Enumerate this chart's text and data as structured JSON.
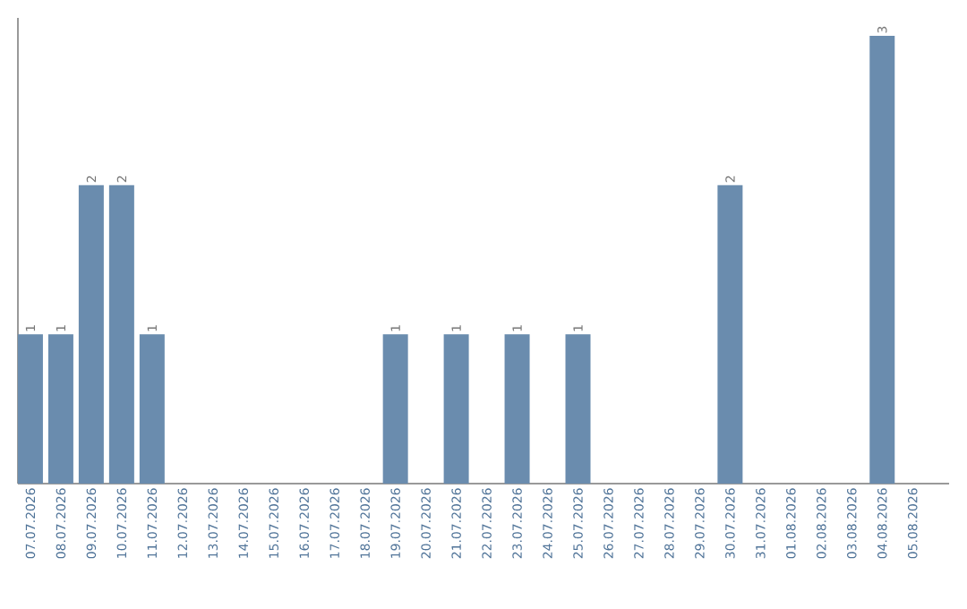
{
  "chart_data": {
    "type": "bar",
    "color": "#6a8cae",
    "categories": [
      "07.07.2026",
      "08.07.2026",
      "09.07.2026",
      "10.07.2026",
      "11.07.2026",
      "12.07.2026",
      "13.07.2026",
      "14.07.2026",
      "15.07.2026",
      "16.07.2026",
      "17.07.2026",
      "18.07.2026",
      "19.07.2026",
      "20.07.2026",
      "21.07.2026",
      "22.07.2026",
      "23.07.2026",
      "24.07.2026",
      "25.07.2026",
      "26.07.2026",
      "27.07.2026",
      "28.07.2026",
      "29.07.2026",
      "30.07.2026",
      "31.07.2026",
      "01.08.2026",
      "02.08.2026",
      "03.08.2026",
      "04.08.2026",
      "05.08.2026"
    ],
    "values": [
      1,
      1,
      2,
      2,
      1,
      0,
      0,
      0,
      0,
      0,
      0,
      0,
      1,
      0,
      1,
      0,
      1,
      0,
      1,
      0,
      0,
      0,
      0,
      2,
      0,
      0,
      0,
      0,
      3,
      0
    ],
    "value_labels": [
      "1",
      "1",
      "2",
      "2",
      "1",
      null,
      null,
      null,
      null,
      null,
      null,
      null,
      "1",
      null,
      "1",
      null,
      "1",
      null,
      "1",
      null,
      null,
      null,
      null,
      "2",
      null,
      null,
      null,
      null,
      "3",
      null
    ]
  }
}
